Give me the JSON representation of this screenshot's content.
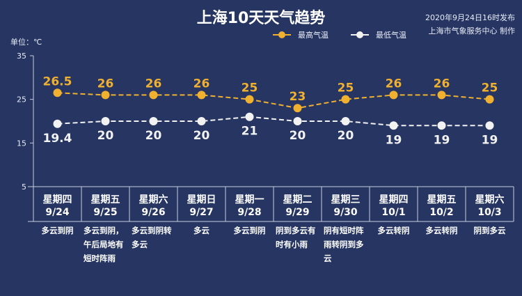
{
  "title": "上海10天天气趋势",
  "publish": {
    "time": "2020年9月24日16时发布",
    "producer": "上海市气象服务中心 制作"
  },
  "colors": {
    "background": "#263562",
    "high": "#f0b030",
    "low": "#f2f2f2"
  },
  "chart_data": {
    "type": "line",
    "title": "上海10天天气趋势",
    "ylabel": "单位：℃",
    "ylim": [
      5,
      35
    ],
    "yticks": [
      "5",
      "15",
      "25",
      "35"
    ],
    "grid": false,
    "legend": "top",
    "categories": [
      "9/24",
      "9/25",
      "9/26",
      "9/27",
      "9/28",
      "9/29",
      "9/30",
      "10/1",
      "10/2",
      "10/3"
    ],
    "weekdays": [
      "星期四",
      "星期五",
      "星期六",
      "星期日",
      "星期一",
      "星期二",
      "星期三",
      "星期四",
      "星期五",
      "星期六"
    ],
    "weather": [
      "多云到阴",
      "多云到阴，午后局地有短时阵雨",
      "多云到阴转多云",
      "多云",
      "多云到阴",
      "阴到多云有时有小雨",
      "阴有短时阵雨转阴到多云",
      "多云转阴",
      "多云转阴",
      "阴到多云"
    ],
    "series": [
      {
        "name": "最高气温",
        "values": [
          26.5,
          26,
          26,
          26,
          25,
          23,
          25,
          26,
          26,
          25
        ],
        "color": "#f0b030"
      },
      {
        "name": "最低气温",
        "values": [
          19.4,
          20,
          20,
          20,
          21,
          20,
          20,
          19,
          19,
          19
        ],
        "color": "#f2f2f2"
      }
    ]
  }
}
